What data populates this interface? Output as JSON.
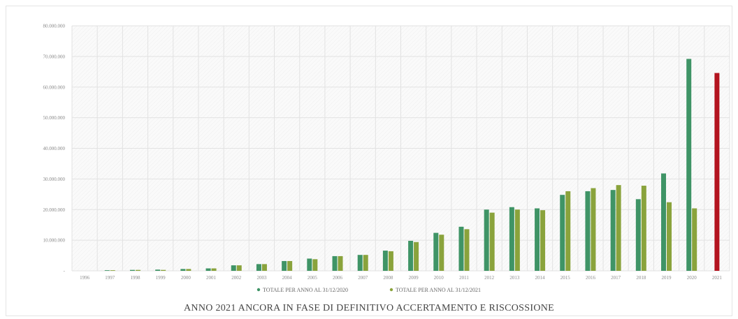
{
  "caption": "ANNO 2021 ANCORA IN FASE DI DEFINITIVO ACCERTAMENTO E RISCOSSIONE",
  "chart_data": {
    "type": "bar",
    "title": "",
    "xlabel": "",
    "ylabel": "",
    "ylim": [
      0,
      80000000
    ],
    "y_ticks": [
      "-",
      "10.000.000",
      "20.000.000",
      "30.000.000",
      "40.000.000",
      "50.000.000",
      "60.000.000",
      "70.000.000",
      "80.000.000"
    ],
    "grid": true,
    "legend_position": "bottom",
    "categories": [
      "1996",
      "1997",
      "1998",
      "1999",
      "2000",
      "2001",
      "2002",
      "2003",
      "2004",
      "2005",
      "2006",
      "2007",
      "2008",
      "2009",
      "2010",
      "2011",
      "2012",
      "2013",
      "2014",
      "2015",
      "2016",
      "2017",
      "2018",
      "2019",
      "2020",
      "2021"
    ],
    "series": [
      {
        "name": "TOTALE PER ANNO AL 31/12/2020",
        "color": "#3f9466",
        "values": [
          0,
          200000,
          300000,
          400000,
          600000,
          800000,
          1800000,
          2200000,
          3200000,
          4000000,
          4800000,
          5200000,
          6600000,
          9800000,
          12400000,
          14400000,
          20000000,
          20800000,
          20400000,
          24800000,
          26000000,
          26400000,
          23400000,
          31800000,
          69200000,
          null
        ]
      },
      {
        "name": "TOTALE PER ANNO AL 31/12/2021",
        "color": "#8aa33c",
        "values": [
          0,
          200000,
          300000,
          300000,
          600000,
          800000,
          1800000,
          2200000,
          3200000,
          3800000,
          4800000,
          5200000,
          6400000,
          9400000,
          11800000,
          13600000,
          19000000,
          20000000,
          19800000,
          26000000,
          27000000,
          28000000,
          27800000,
          22400000,
          20400000,
          null
        ]
      }
    ],
    "highlight": {
      "category": "2021",
      "value": 64600000,
      "color": "#b3141f"
    }
  }
}
